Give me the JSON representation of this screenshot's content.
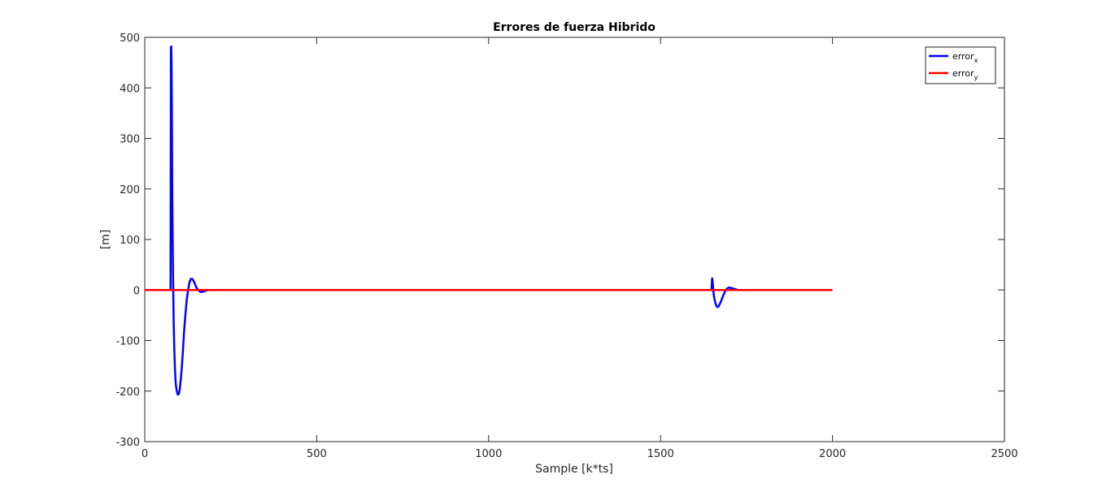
{
  "chart_data": {
    "type": "line",
    "title": "Errores de fuerza Hibrido",
    "xlabel": "Sample [k*ts]",
    "ylabel": "[m]",
    "xlim": [
      0,
      2500
    ],
    "ylim": [
      -300,
      500
    ],
    "xticks": [
      0,
      500,
      1000,
      1500,
      2000,
      2500
    ],
    "yticks": [
      -300,
      -200,
      -100,
      0,
      100,
      200,
      300,
      400,
      500
    ],
    "grid": false,
    "legend_position": "top-right",
    "series": [
      {
        "name_base": "error",
        "name_sub": "x",
        "color": "#0000ff",
        "x": [
          0,
          75,
          76,
          77,
          78,
          79,
          80,
          82,
          84,
          86,
          88,
          90,
          93,
          96,
          99,
          102,
          105,
          108,
          111,
          114,
          118,
          122,
          126,
          130,
          134,
          138,
          142,
          146,
          150,
          155,
          160,
          165,
          170,
          175,
          180,
          185,
          190,
          195,
          200,
          210,
          220,
          230,
          240,
          250,
          1648,
          1650,
          1651,
          1652,
          1654,
          1656,
          1658,
          1660,
          1663,
          1666,
          1669,
          1672,
          1676,
          1680,
          1684,
          1688,
          1692,
          1696,
          1700,
          1705,
          1710,
          1715,
          1720,
          1725,
          1730,
          1740,
          1750,
          1760,
          1775
        ],
        "y": [
          0,
          0,
          480,
          482,
          440,
          330,
          180,
          40,
          -60,
          -120,
          -160,
          -185,
          -200,
          -207,
          -206,
          -195,
          -175,
          -150,
          -120,
          -85,
          -50,
          -20,
          0,
          15,
          22,
          22,
          18,
          12,
          5,
          0,
          -3,
          -4,
          -3,
          -2,
          -1,
          0,
          0,
          0,
          0,
          0,
          0,
          0,
          0,
          0,
          0,
          23,
          20,
          10,
          -5,
          -15,
          -22,
          -27,
          -32,
          -34,
          -32,
          -28,
          -22,
          -15,
          -8,
          -2,
          2,
          4,
          5,
          4,
          3,
          2,
          1,
          0,
          0,
          0,
          0,
          0,
          0
        ]
      },
      {
        "name_base": "error",
        "name_sub": "y",
        "color": "#ff0000",
        "x": [
          0,
          2000
        ],
        "y": [
          0,
          0
        ]
      }
    ]
  }
}
